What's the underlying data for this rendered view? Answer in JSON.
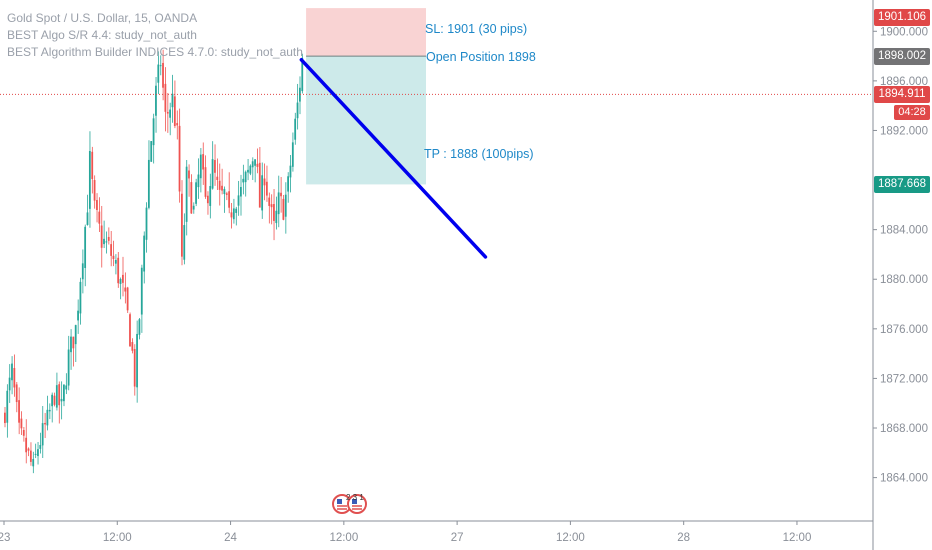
{
  "legend": {
    "title": "Gold Spot / U.S. Dollar, 15, OANDA",
    "indicator1": "BEST Algo S/R 4.4: study_not_auth",
    "indicator2": "BEST Algorithm Builder INDICES 4.7.0: study_not_auth"
  },
  "annotations": {
    "sl": "SL: 1901 (30 pips)",
    "open": "Open Position 1898",
    "tp": "TP : 1888 (100pips)"
  },
  "price_tags": {
    "sl": "1901.106",
    "open": "1898.002",
    "last": "1894.911",
    "countdown": "04:28",
    "tp": "1887.668"
  },
  "colors": {
    "up": "#26a69a",
    "down": "#ef5350",
    "sl_zone": "#f9d3d3",
    "tp_zone": "#cdeaea",
    "trend_line": "#0000ee",
    "last_price": "#e04848",
    "tp_tag": "#189a86",
    "open_tag": "#737375"
  },
  "badge": {
    "text": "2 3 1"
  },
  "chart_data": {
    "type": "candlestick",
    "y_axis": {
      "range": [
        1860.5,
        1902.2
      ],
      "ticks": [
        "1900.000",
        "1896.000",
        "1892.000",
        "1884.000",
        "1880.000",
        "1876.000",
        "1872.000",
        "1868.000",
        "1864.000"
      ],
      "tick_values": [
        1900,
        1896,
        1892,
        1884,
        1880,
        1876,
        1872,
        1868,
        1864
      ]
    },
    "x_axis": {
      "ticks": [
        "23",
        "12:00",
        "24",
        "12:00",
        "27",
        "12:00",
        "28",
        "12:00"
      ],
      "tick_positions": [
        0,
        48,
        96,
        144,
        192,
        240,
        288,
        336
      ]
    },
    "position": {
      "stop_loss": 1901,
      "entry": 1898,
      "take_profit": 1888,
      "last_price": 1894.911
    },
    "trend_line": {
      "from": [
        126,
        1897.7
      ],
      "to": [
        204,
        1881.8
      ]
    },
    "price_path": [
      [
        0,
        1869.5
      ],
      [
        3,
        1872.5
      ],
      [
        6,
        1867.5
      ],
      [
        9,
        1866.2
      ],
      [
        12,
        1864.6
      ],
      [
        14,
        1866.5
      ],
      [
        18,
        1868.5
      ],
      [
        21,
        1870.8
      ],
      [
        24,
        1869.5
      ],
      [
        27,
        1873.8
      ],
      [
        30,
        1876.0
      ],
      [
        32,
        1880.3
      ],
      [
        35,
        1886.2
      ],
      [
        36,
        1889.5
      ],
      [
        38,
        1885.5
      ],
      [
        41,
        1883.2
      ],
      [
        44,
        1882.5
      ],
      [
        47,
        1881.0
      ],
      [
        50,
        1879.0
      ],
      [
        52,
        1877.0
      ],
      [
        54,
        1874.0
      ],
      [
        55,
        1872.0
      ],
      [
        57,
        1877.0
      ],
      [
        59,
        1883.5
      ],
      [
        61,
        1889.5
      ],
      [
        64,
        1895.0
      ],
      [
        66,
        1897.6
      ],
      [
        68,
        1893.0
      ],
      [
        71,
        1894.5
      ],
      [
        73,
        1891.5
      ],
      [
        74,
        1887.0
      ],
      [
        75,
        1881.0
      ],
      [
        77,
        1888.2
      ],
      [
        80,
        1885.5
      ],
      [
        83,
        1889.5
      ],
      [
        85,
        1886.2
      ],
      [
        88,
        1889.0
      ],
      [
        91,
        1886.5
      ],
      [
        93,
        1886.8
      ],
      [
        95,
        1884.8
      ],
      [
        97,
        1886.5
      ],
      [
        100,
        1887.0
      ],
      [
        103,
        1888.5
      ],
      [
        106,
        1890.5
      ],
      [
        108,
        1886.0
      ],
      [
        110,
        1888.6
      ],
      [
        112,
        1886.0
      ],
      [
        114,
        1884.0
      ],
      [
        116,
        1886.2
      ],
      [
        118,
        1885.8
      ],
      [
        120,
        1887.5
      ],
      [
        122,
        1891.0
      ],
      [
        124,
        1894.0
      ],
      [
        126,
        1897.7
      ]
    ],
    "xlabel": "",
    "ylabel": ""
  }
}
